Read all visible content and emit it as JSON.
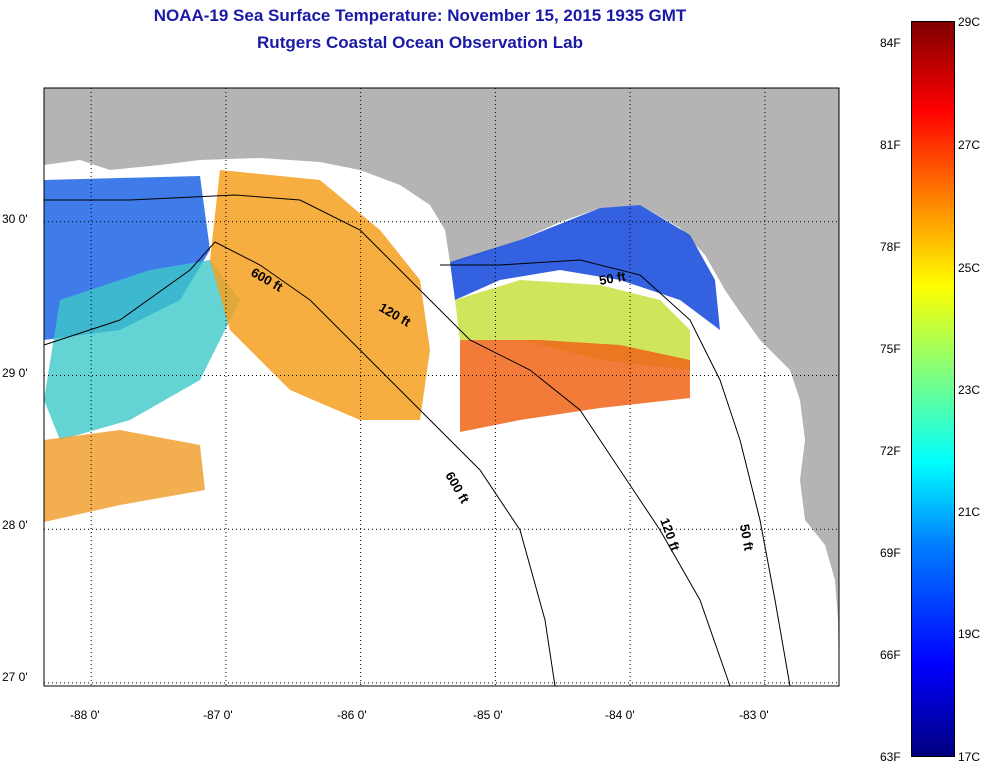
{
  "title": "NOAA-19 Sea Surface Temperature:  November 15, 2015 1935 GMT",
  "subtitle": "Rutgers Coastal Ocean Observation Lab",
  "map": {
    "lat_labels": [
      "30 0'",
      "29 0'",
      "28 0'",
      "27 0'"
    ],
    "lon_labels": [
      "-88 0'",
      "-87 0'",
      "-86 0'",
      "-85 0'",
      "-84 0'",
      "-83 0'"
    ],
    "lat_values": [
      30,
      29,
      28,
      27
    ],
    "lon_values": [
      -88,
      -87,
      -86,
      -85,
      -84,
      -83
    ],
    "extent": {
      "lon": [
        -88.35,
        -82.45
      ],
      "lat": [
        26.98,
        30.87
      ]
    },
    "isobath_labels": {
      "a": "600 ft",
      "b": "120 ft",
      "c": "50 ft",
      "d": "600 ft",
      "e": "120 ft",
      "f": "50 ft"
    },
    "colors": {
      "land": "#b4b4b4",
      "ocean_nodata": "#ffffff",
      "isobath": "#000000"
    }
  },
  "colorbar": {
    "fahrenheit": [
      "84F",
      "81F",
      "78F",
      "75F",
      "72F",
      "69F",
      "66F",
      "63F"
    ],
    "celsius": [
      "29C",
      "27C",
      "25C",
      "23C",
      "21C",
      "19C",
      "17C"
    ],
    "range_c": [
      17,
      29
    ],
    "colormap": "jet"
  }
}
